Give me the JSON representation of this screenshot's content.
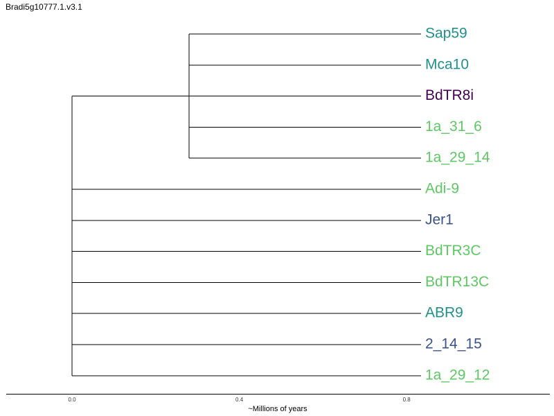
{
  "title": "Bradi5g10777.1.v3.1",
  "colors": {
    "teal": "#21908C",
    "purple": "#440154",
    "green": "#5DC863",
    "navy": "#3B528B"
  },
  "tree": {
    "root": {
      "children": [
        {
          "name": "inner-clade",
          "children": [
            {
              "label": "Sap59",
              "color": "#21908C"
            },
            {
              "label": "Mca10",
              "color": "#21908C"
            },
            {
              "label": "BdTR8i",
              "color": "#440154"
            },
            {
              "label": "1a_31_6",
              "color": "#5DC863"
            },
            {
              "label": "1a_29_14",
              "color": "#5DC863"
            }
          ]
        },
        {
          "label": "Adi-9",
          "color": "#5DC863"
        },
        {
          "label": "Jer1",
          "color": "#3B528B"
        },
        {
          "label": "BdTR3C",
          "color": "#5DC863"
        },
        {
          "label": "BdTR13C",
          "color": "#5DC863"
        },
        {
          "label": "ABR9",
          "color": "#21908C"
        },
        {
          "label": "2_14_15",
          "color": "#3B528B"
        },
        {
          "label": "1a_29_12",
          "color": "#5DC863"
        }
      ]
    },
    "inner_clade_age": 0.28
  },
  "axis": {
    "title": "~Millions of years",
    "ticks": [
      {
        "value": 0.0,
        "label": "0.0"
      },
      {
        "value": 0.4,
        "label": "0.4"
      },
      {
        "value": 0.8,
        "label": "0.8"
      }
    ]
  }
}
